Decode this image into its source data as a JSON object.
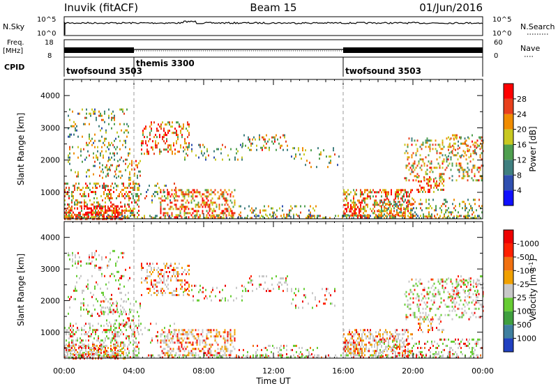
{
  "header": {
    "station": "Inuvik (fitACF)",
    "beam": "Beam 15",
    "date": "01/Jun/2016"
  },
  "status_panels": {
    "nsky_label": "N.Sky",
    "nsky_ticks": [
      "10^5",
      "10^0"
    ],
    "nsearch_label": "N.Search",
    "nsearch_ticks": [
      "10^5",
      "10^0"
    ],
    "freq_label": "Freq.",
    "freq_unit": "[MHz]",
    "freq_ticks": [
      "18",
      "8"
    ],
    "nave_label": "Nave",
    "nave_ticks": [
      "60",
      "0"
    ],
    "cpid_label": "CPID",
    "cpid_segments": [
      {
        "name": "twofsound 3503",
        "start_hr": 0,
        "end_hr": 4
      },
      {
        "name": "themis 3300",
        "start_hr": 4,
        "end_hr": 16
      },
      {
        "name": "twofsound 3503",
        "start_hr": 16,
        "end_hr": 24
      }
    ]
  },
  "chart_data": [
    {
      "type": "heatmap",
      "title": "",
      "xlabel": "",
      "ylabel": "Slant Range [km]",
      "xlim": [
        0,
        24
      ],
      "ylim": [
        180,
        4500
      ],
      "yticks": [
        1000,
        2000,
        3000,
        4000
      ],
      "colorbar": {
        "label": "Power [dB]",
        "ticks": [
          "4",
          "8",
          "12",
          "16",
          "20",
          "24",
          "28"
        ],
        "colors": [
          "#1010ff",
          "#2f4fb0",
          "#3f7f7f",
          "#4f9f4f",
          "#c8c820",
          "#f08c00",
          "#e8401c",
          "#ff0000"
        ]
      },
      "dashed_time_markers": [
        4,
        16
      ]
    },
    {
      "type": "heatmap",
      "title": "",
      "xlabel": "Time UT",
      "ylabel": "Slant Range [km]",
      "xlim": [
        0,
        24
      ],
      "ylim": [
        180,
        4500
      ],
      "yticks": [
        1000,
        2000,
        3000,
        4000
      ],
      "xtick_labels": [
        "00:00",
        "04:00",
        "08:00",
        "12:00",
        "16:00",
        "20:00",
        "00:00"
      ],
      "colorbar": {
        "label": "Velocity [m s",
        "label_sup": "-1",
        "label_end": "]",
        "ticks": [
          "1000",
          "500",
          "100",
          "25",
          "-25",
          "-100",
          "-500",
          "-1000"
        ],
        "colors": [
          "#2040c0",
          "#3f7f9f",
          "#3f9f3f",
          "#66cc33",
          "#c8c8c8",
          "#f0a000",
          "#f07010",
          "#ff2000",
          "#ee0000"
        ]
      },
      "dashed_time_markers": [
        4,
        16
      ]
    }
  ]
}
